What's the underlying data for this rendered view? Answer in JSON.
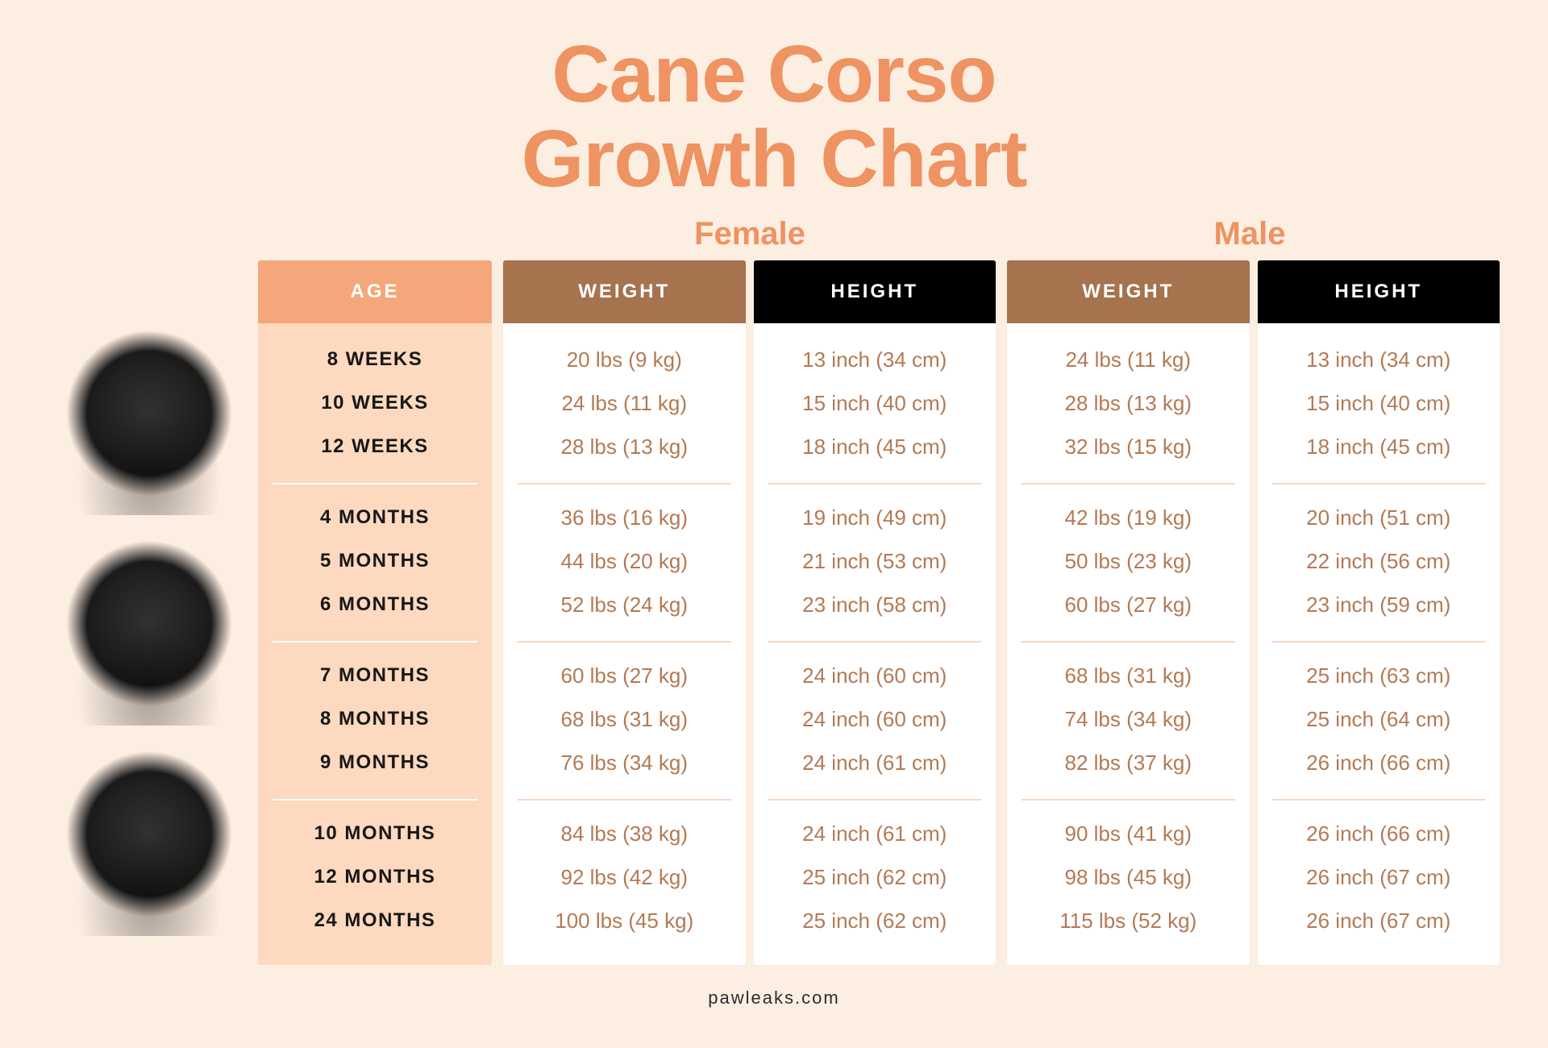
{
  "meta": {
    "canvas_bg": "#fdeee2",
    "accent": "#ee9361",
    "title_fontsize": 100,
    "gender_fontsize": 40
  },
  "title": {
    "line1": "Cane Corso",
    "line2": "Growth Chart"
  },
  "gender_labels": {
    "female": "Female",
    "male": "Male"
  },
  "headers": {
    "age": {
      "text": "AGE",
      "bg": "#f4a77b",
      "fg": "#ffffff"
    },
    "weight": {
      "text": "WEIGHT",
      "bg": "#a6734f",
      "fg": "#ffffff"
    },
    "height": {
      "text": "HEIGHT",
      "bg": "#000000",
      "fg": "#ffffff"
    }
  },
  "age_column": {
    "bg": "#fcd9bf",
    "text_color": "#171717",
    "divider_color": "#ffffff"
  },
  "data_column": {
    "bg": "#ffffff",
    "text_color": "#b37a54",
    "divider_color": "#f7d7c3"
  },
  "footer": {
    "text": "pawleaks.com",
    "color": "#2d2d2d"
  },
  "dog_images": [
    {
      "alt": "Cane Corso puppy sitting"
    },
    {
      "alt": "Young Cane Corso lying down"
    },
    {
      "alt": "Adult Cane Corso head portrait"
    }
  ],
  "blocks": [
    {
      "rows": [
        {
          "age": "8 WEEKS",
          "f_w": "20 lbs (9 kg)",
          "f_h": "13 inch (34 cm)",
          "m_w": "24 lbs (11 kg)",
          "m_h": "13 inch (34 cm)"
        },
        {
          "age": "10 WEEKS",
          "f_w": "24 lbs (11 kg)",
          "f_h": "15 inch (40 cm)",
          "m_w": "28 lbs (13 kg)",
          "m_h": "15 inch (40 cm)"
        },
        {
          "age": "12 WEEKS",
          "f_w": "28 lbs (13 kg)",
          "f_h": "18 inch (45 cm)",
          "m_w": "32 lbs (15 kg)",
          "m_h": "18 inch (45 cm)"
        }
      ]
    },
    {
      "rows": [
        {
          "age": "4 MONTHS",
          "f_w": "36 lbs (16 kg)",
          "f_h": "19 inch (49 cm)",
          "m_w": "42 lbs (19 kg)",
          "m_h": "20 inch (51 cm)"
        },
        {
          "age": "5 MONTHS",
          "f_w": "44 lbs (20 kg)",
          "f_h": "21 inch (53 cm)",
          "m_w": "50 lbs (23 kg)",
          "m_h": "22 inch (56 cm)"
        },
        {
          "age": "6 MONTHS",
          "f_w": "52 lbs (24 kg)",
          "f_h": "23 inch (58 cm)",
          "m_w": "60 lbs (27 kg)",
          "m_h": "23 inch (59 cm)"
        }
      ]
    },
    {
      "rows": [
        {
          "age": "7 MONTHS",
          "f_w": "60 lbs (27 kg)",
          "f_h": "24 inch (60 cm)",
          "m_w": "68 lbs (31 kg)",
          "m_h": "25 inch (63 cm)"
        },
        {
          "age": "8 MONTHS",
          "f_w": "68 lbs (31 kg)",
          "f_h": "24 inch (60 cm)",
          "m_w": "74 lbs (34 kg)",
          "m_h": "25 inch (64 cm)"
        },
        {
          "age": "9 MONTHS",
          "f_w": "76 lbs (34 kg)",
          "f_h": "24 inch (61 cm)",
          "m_w": "82 lbs (37 kg)",
          "m_h": "26 inch (66 cm)"
        }
      ]
    },
    {
      "rows": [
        {
          "age": "10 MONTHS",
          "f_w": "84 lbs (38 kg)",
          "f_h": "24 inch (61 cm)",
          "m_w": "90 lbs (41 kg)",
          "m_h": "26 inch (66 cm)"
        },
        {
          "age": "12 MONTHS",
          "f_w": "92 lbs (42 kg)",
          "f_h": "25 inch (62 cm)",
          "m_w": "98 lbs (45 kg)",
          "m_h": "26 inch (67 cm)"
        },
        {
          "age": "24 MONTHS",
          "f_w": "100 lbs (45 kg)",
          "f_h": "25 inch (62 cm)",
          "m_w": "115 lbs (52 kg)",
          "m_h": "26 inch (67 cm)"
        }
      ]
    }
  ]
}
